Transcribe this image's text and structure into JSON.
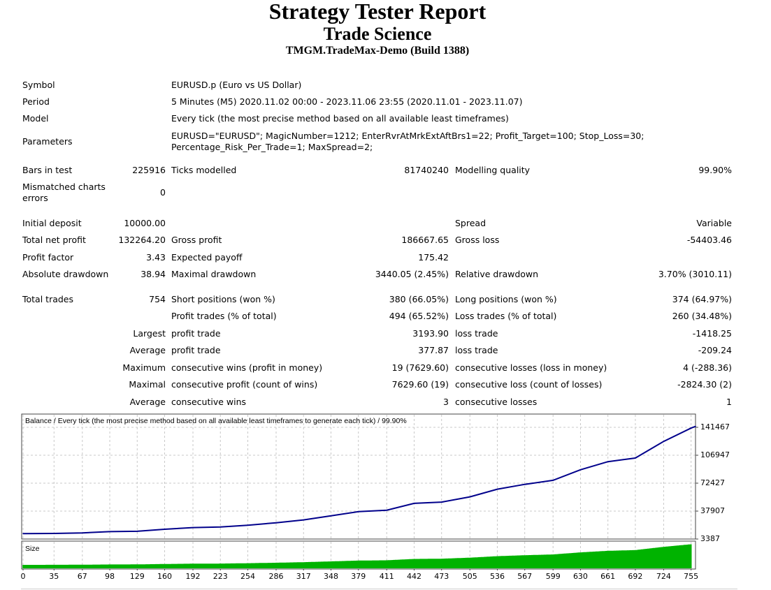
{
  "header": {
    "title": "Strategy Tester Report",
    "subtitle": "Trade Science",
    "server": "TMGM.TradeMax-Demo (Build 1388)"
  },
  "info": {
    "symbol": {
      "label": "Symbol",
      "value": "EURUSD.p (Euro vs US Dollar)"
    },
    "period": {
      "label": "Period",
      "value": "5 Minutes (M5) 2020.11.02 00:00 - 2023.11.06 23:55 (2020.11.01 - 2023.11.07)"
    },
    "model": {
      "label": "Model",
      "value": "Every tick (the most precise method based on all available least timeframes)"
    },
    "parameters": {
      "label": "Parameters",
      "line1": "EURUSD=\"EURUSD\"; MagicNumber=1212; EnterRvrAtMrkExtAftBrs1=22; Profit_Target=100; Stop_Loss=30;",
      "line2": "Percentage_Risk_Per_Trade=1; MaxSpread=2;"
    }
  },
  "stats": {
    "bars_label": "Bars in test",
    "bars_value": "225916",
    "ticks_label": "Ticks modelled",
    "ticks_value": "81740240",
    "quality_label": "Modelling quality",
    "quality_value": "99.90%",
    "mismatch_label": "Mismatched charts errors",
    "mismatch_value": "0",
    "deposit_label": "Initial deposit",
    "deposit_value": "10000.00",
    "spread_label": "Spread",
    "spread_value": "Variable",
    "net_label": "Total net profit",
    "net_value": "132264.20",
    "gross_profit_label": "Gross profit",
    "gross_profit_value": "186667.65",
    "gross_loss_label": "Gross loss",
    "gross_loss_value": "-54403.46",
    "pf_label": "Profit factor",
    "pf_value": "3.43",
    "payoff_label": "Expected payoff",
    "payoff_value": "175.42",
    "abs_dd_label": "Absolute drawdown",
    "abs_dd_value": "38.94",
    "max_dd_label": "Maximal drawdown",
    "max_dd_value": "3440.05 (2.45%)",
    "rel_dd_label": "Relative drawdown",
    "rel_dd_value": "3.70% (3010.11)",
    "trades_label": "Total trades",
    "trades_value": "754",
    "short_label": "Short positions (won %)",
    "short_value": "380 (66.05%)",
    "long_label": "Long positions (won %)",
    "long_value": "374 (64.97%)",
    "pt_label": "Profit trades (% of total)",
    "pt_value": "494 (65.52%)",
    "lt_label": "Loss trades (% of total)",
    "lt_value": "260 (34.48%)",
    "largest_label": "Largest",
    "largest_profit_label": "profit trade",
    "largest_profit_value": "3193.90",
    "largest_loss_label": "loss trade",
    "largest_loss_value": "-1418.25",
    "average_label": "Average",
    "average_profit_label": "profit trade",
    "average_profit_value": "377.87",
    "average_loss_label": "loss trade",
    "average_loss_value": "-209.24",
    "maximum_label": "Maximum",
    "max_wins_label": "consecutive wins (profit in money)",
    "max_wins_value": "19 (7629.60)",
    "max_losses_label": "consecutive losses (loss in money)",
    "max_losses_value": "4 (-288.36)",
    "maximal_label": "Maximal",
    "mx_profit_label": "consecutive profit (count of wins)",
    "mx_profit_value": "7629.60 (19)",
    "mx_loss_label": "consecutive loss (count of losses)",
    "mx_loss_value": "-2824.30 (2)",
    "avg2_label": "Average",
    "avg_wins_label": "consecutive wins",
    "avg_wins_value": "3",
    "avg_losses_label": "consecutive losses",
    "avg_losses_value": "1"
  },
  "chart_data": {
    "type": "line",
    "title": "Balance / Every tick (the most precise method based on all available least timeframes to generate each tick) / 99.90%",
    "size_label": "Size",
    "x_ticks": [
      0,
      35,
      67,
      98,
      129,
      160,
      192,
      223,
      254,
      286,
      317,
      348,
      379,
      411,
      442,
      473,
      505,
      536,
      567,
      599,
      630,
      661,
      692,
      724,
      755
    ],
    "y_ticks": [
      3387,
      37907,
      72427,
      106947,
      141467
    ],
    "xlim": [
      0,
      760
    ],
    "ylim": [
      3387,
      141467
    ],
    "series": [
      {
        "x": [
          0,
          35,
          67,
          98,
          129,
          160,
          192,
          223,
          254,
          286,
          317,
          348,
          379,
          411,
          442,
          473,
          505,
          536,
          567,
          599,
          630,
          661,
          692,
          724,
          755,
          760
        ],
        "values": [
          10000,
          10300,
          11000,
          12500,
          13000,
          15500,
          17500,
          18200,
          20500,
          23500,
          27000,
          32000,
          37200,
          39000,
          47500,
          49000,
          55500,
          65000,
          71000,
          76000,
          89000,
          99000,
          103500,
          124000,
          140500,
          142600
        ]
      }
    ],
    "colors": {
      "balance": "#00008b",
      "size": "#00b300",
      "grid": "#c8c8c8"
    }
  }
}
